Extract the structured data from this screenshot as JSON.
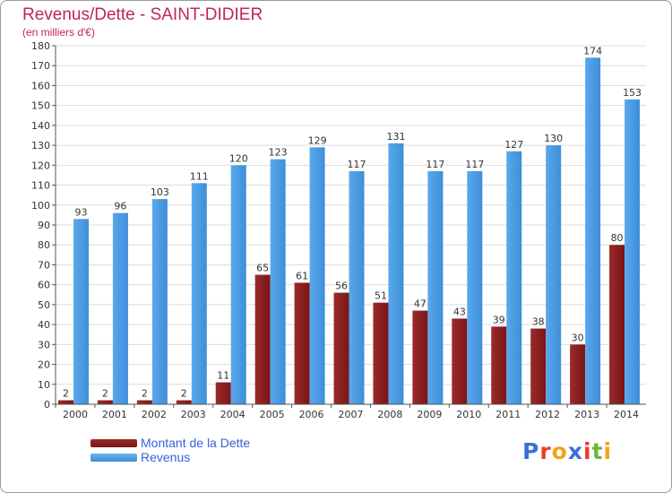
{
  "title": "Revenus/Dette - SAINT-DIDIER",
  "subtitle": "(en milliers d'€)",
  "logo": {
    "text": "Proxiti",
    "letter_colors": [
      "#3b6fd6",
      "#e8402a",
      "#f2a31b",
      "#3b6fd6",
      "#e8402a",
      "#6ab53c",
      "#f2a31b"
    ]
  },
  "colors": {
    "dette": "#7b1515",
    "revenus": "#3d8fd8",
    "grid": "#dddddd",
    "axis": "#555555"
  },
  "chart_data": {
    "type": "bar",
    "categories": [
      "2000",
      "2001",
      "2002",
      "2003",
      "2004",
      "2005",
      "2006",
      "2007",
      "2008",
      "2009",
      "2010",
      "2011",
      "2012",
      "2013",
      "2014"
    ],
    "series": [
      {
        "name": "Montant de la Dette",
        "values": [
          2,
          2,
          2,
          2,
          11,
          65,
          61,
          56,
          51,
          47,
          43,
          39,
          38,
          30,
          80
        ]
      },
      {
        "name": "Revenus",
        "values": [
          93,
          96,
          103,
          111,
          120,
          123,
          129,
          117,
          131,
          117,
          117,
          127,
          130,
          174,
          153
        ]
      }
    ],
    "title": "Revenus/Dette - SAINT-DIDIER",
    "subtitle": "(en milliers d'€)",
    "ylim": [
      0,
      180
    ],
    "yticks": [
      0,
      10,
      20,
      30,
      40,
      50,
      60,
      70,
      80,
      90,
      100,
      110,
      120,
      130,
      140,
      150,
      160,
      170,
      180
    ],
    "grid": true,
    "legend": "bottom-left",
    "data_labels": true
  }
}
